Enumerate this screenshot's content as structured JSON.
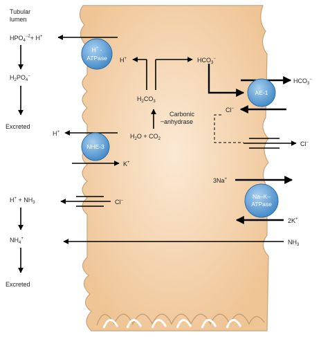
{
  "colors": {
    "cell_fill": "#f2cfa6",
    "cell_edge": "#c9a27a",
    "transporter_fill": "#5b9bd5",
    "transporter_edge": "#2e6da4"
  },
  "lumen": {
    "title_line1": "Tubular",
    "title_line2": "lumen",
    "hpo4": "HPO",
    "hpo4_sub": "4",
    "hpo4_sup": "−2",
    "hpo4_suffix": "+ H",
    "hpo4_suffix_sup": "+",
    "h2po4": "H",
    "h2po4_sub1": "2",
    "h2po4_mid": "PO",
    "h2po4_sub2": "4",
    "h2po4_sup": "−",
    "excreted1": "Excreted",
    "h_nhe": "H",
    "h_nhe_sup": "+",
    "h_nh3": "H",
    "h_nh3_sup": "+",
    "h_nh3_suffix": " + NH",
    "h_nh3_sub": "3",
    "nh4": "NH",
    "nh4_sub": "4",
    "nh4_sup": "+",
    "excreted2": "Excreted"
  },
  "cell": {
    "h_plus": "H",
    "h_plus_sup": "+",
    "hco3": "HCO",
    "hco3_sub": "3",
    "hco3_sup": "−",
    "h2co3": "H",
    "h2co3_sub1": "2",
    "h2co3_mid": "CO",
    "h2co3_sub2": "3",
    "carbonic_line1": "Carbonic",
    "carbonic_line2": "anhydrase",
    "water_co2": "H",
    "water_co2_sub1": "2",
    "water_co2_mid": "O + CO",
    "water_co2_sub2": "2",
    "cl_ae1": "Cl",
    "cl_ae1_sup": "−",
    "k_plus": "K",
    "k_plus_sup": "+",
    "cl_lumen_channel": "Cl",
    "cl_lumen_channel_sup": "−",
    "three_na": "3Na",
    "three_na_sup": "+"
  },
  "blood": {
    "hco3": "HCO",
    "hco3_sub": "3",
    "hco3_sup": "−",
    "cl": "Cl",
    "cl_sup": "−",
    "two_k": "2K",
    "two_k_sup": "+",
    "nh3": "NH",
    "nh3_sub": "3"
  },
  "transporters": {
    "h_atpase_line1": "H",
    "h_atpase_line1_sup": "+",
    "h_atpase_line1_suffix": " -",
    "h_atpase_line2": "ATPase",
    "nhe3": "NHE-3",
    "ae1": "AE-1",
    "nak_line1": "Na–K–",
    "nak_line2": "ATPase"
  }
}
